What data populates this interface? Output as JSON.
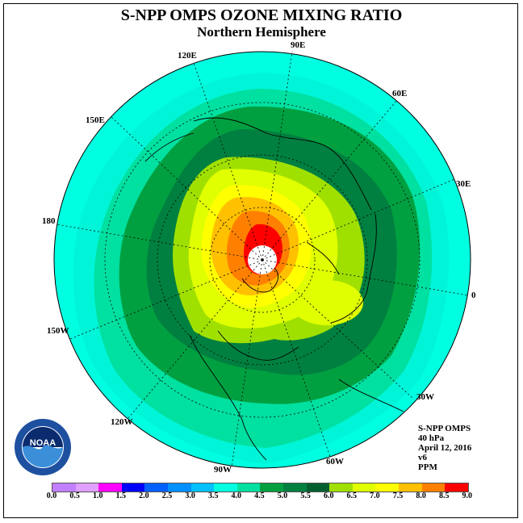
{
  "header": {
    "title": "S-NPP OMPS OZONE MIXING RATIO",
    "subtitle": "Northern Hemisphere"
  },
  "map": {
    "projection": "north-polar-stereographic",
    "longitude_labels": [
      "90E",
      "60E",
      "30E",
      "0",
      "30W",
      "60W",
      "90W",
      "120W",
      "150W",
      "180",
      "150E",
      "120E"
    ]
  },
  "info": {
    "instrument": "S-NPP OMPS",
    "level": "40 hPa",
    "date": "April 12, 2016",
    "version": "v6",
    "units": "PPM"
  },
  "colorbar": {
    "ticks": [
      "0.0",
      "0.5",
      "1.0",
      "1.5",
      "2.0",
      "2.5",
      "3.0",
      "3.5",
      "4.0",
      "4.5",
      "5.0",
      "5.5",
      "6.0",
      "6.5",
      "7.0",
      "7.5",
      "8.0",
      "8.5",
      "9.0"
    ],
    "colors": [
      "#c080ff",
      "#e0a0ff",
      "#ff00ff",
      "#0000ff",
      "#0060ff",
      "#0090ff",
      "#00c0ff",
      "#00ffe0",
      "#00e0a0",
      "#00a040",
      "#008040",
      "#006030",
      "#a0e000",
      "#e0ff00",
      "#ffff00",
      "#ffc000",
      "#ff8000",
      "#ff0000",
      "#8b4513"
    ]
  },
  "logo": {
    "text": "NOAA"
  }
}
